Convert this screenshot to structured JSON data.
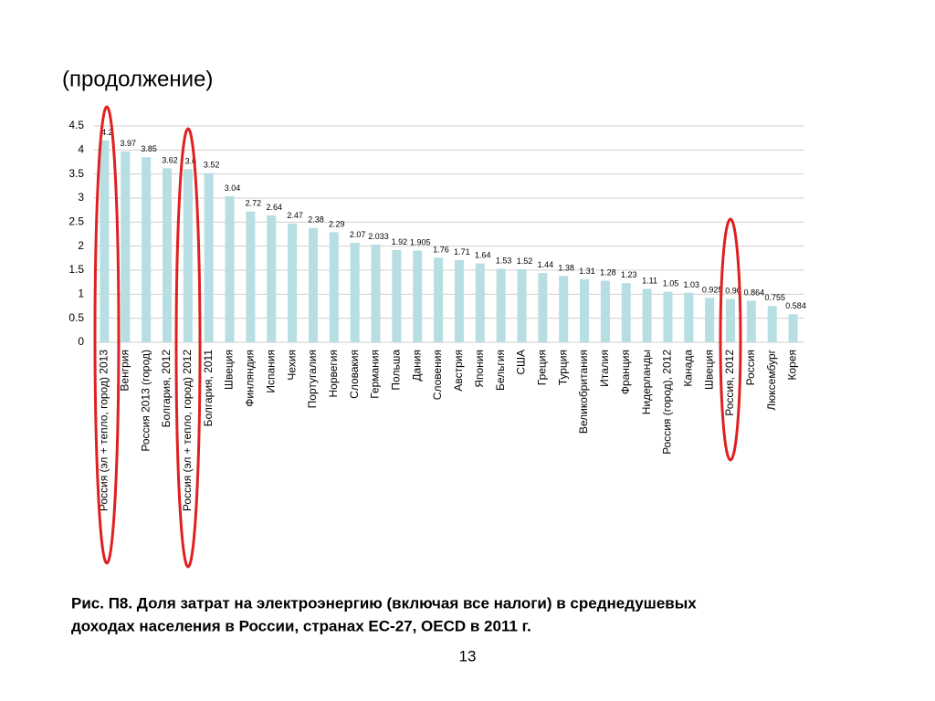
{
  "header": {
    "title": "(продолжение)"
  },
  "chart_data": {
    "type": "bar",
    "categories": [
      "Россия (эл + тепло, город) 2013",
      "Венгрия",
      "Россия 2013 (город)",
      "Болгария, 2012",
      "Россия (эл + тепло, город) 2012",
      "Болгария, 2011",
      "Швеция",
      "Финляндия",
      "Испания",
      "Чехия",
      "Португалия",
      "Норвегия",
      "Словакия",
      "Германия",
      "Польша",
      "Дания",
      "Словения",
      "Австрия",
      "Япония",
      "Бельгия",
      "США",
      "Греция",
      "Турция",
      "Великобритания",
      "Италия",
      "Франция",
      "Нидерланды",
      "Россия (город), 2012",
      "Канада",
      "Швеция",
      "Россия, 2012",
      "Россия",
      "Люксембург",
      "Корея"
    ],
    "values": [
      4.2,
      3.97,
      3.85,
      3.62,
      3.6,
      3.52,
      3.04,
      2.72,
      2.64,
      2.47,
      2.38,
      2.29,
      2.07,
      2.033,
      1.92,
      1.905,
      1.76,
      1.71,
      1.64,
      1.53,
      1.52,
      1.44,
      1.38,
      1.31,
      1.28,
      1.23,
      1.11,
      1.05,
      1.03,
      0.925,
      0.9,
      0.864,
      0.755,
      0.584
    ],
    "value_labels": [
      "4.2",
      "3.97",
      "3.85",
      "3.62",
      "3.6",
      "3.52",
      "3.04",
      "2.72",
      "2.64",
      "2.47",
      "2.38",
      "2.29",
      "2.07",
      "2.033",
      "1.92",
      "1.905",
      "1.76",
      "1.71",
      "1.64",
      "1.53",
      "1.52",
      "1.44",
      "1.38",
      "1.31",
      "1.28",
      "1.23",
      "1.11",
      "1.05",
      "1.03",
      "0.925",
      "0.90",
      "0.864",
      "0.755",
      "0.584"
    ],
    "color": "#b7dee2",
    "ylim": [
      0,
      4.5
    ],
    "yticks": [
      0,
      0.5,
      1,
      1.5,
      2,
      2.5,
      3,
      3.5,
      4,
      4.5
    ],
    "grid": true
  },
  "caption": [
    "Рис. П8. Доля затрат на электроэнергию (включая все налоги) в среднедушевых",
    "доходах населения в России, странах ЕС-27, OECD в 2011 г."
  ],
  "page_number": "13"
}
